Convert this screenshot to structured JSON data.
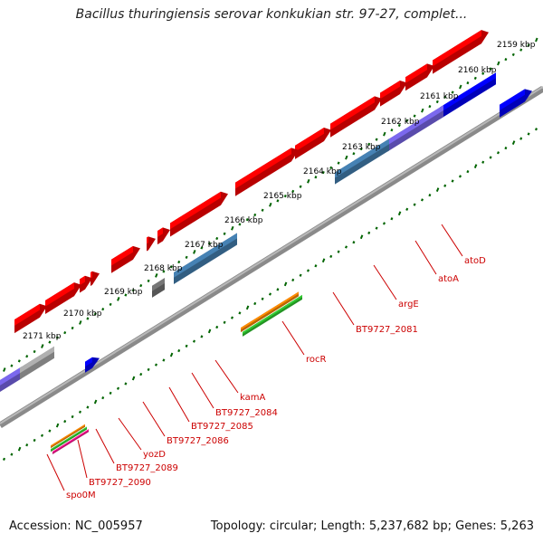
{
  "title": "Bacillus thuringiensis serovar konkukian str. 97-27, complet...",
  "kbp_labels": [
    "2159 kbp",
    "2160 kbp",
    "2161 kbp",
    "2162 kbp",
    "2163 kbp",
    "2164 kbp",
    "2165 kbp",
    "2166 kbp",
    "2167 kbp",
    "2168 kbp",
    "2169 kbp",
    "2170 kbp",
    "2171 kbp"
  ],
  "gene_labels": [
    "atoD",
    "atoA",
    "argE",
    "BT9727_2081",
    "rocR",
    "kamA",
    "BT9727_2084",
    "BT9727_2085",
    "BT9727_2086",
    "yozD",
    "BT9727_2089",
    "BT9727_2090",
    "spo0M"
  ],
  "footer": {
    "accession": "Accession: NC_005957",
    "topology": "Topology: circular; Length: 5,237,682 bp; Genes: 5,263"
  },
  "colors": {
    "backbone": "#7a7a7a",
    "cds": "#ff0000",
    "rna": "#0000ff",
    "tick": "#006400",
    "label_red": "#cc0000",
    "cog_blue": "#4682b4",
    "cog_purple": "#7b68ee",
    "cog_gray": "#b0b0b0",
    "cog_orange": "#ff8c00",
    "cog_green": "#32cd32"
  }
}
